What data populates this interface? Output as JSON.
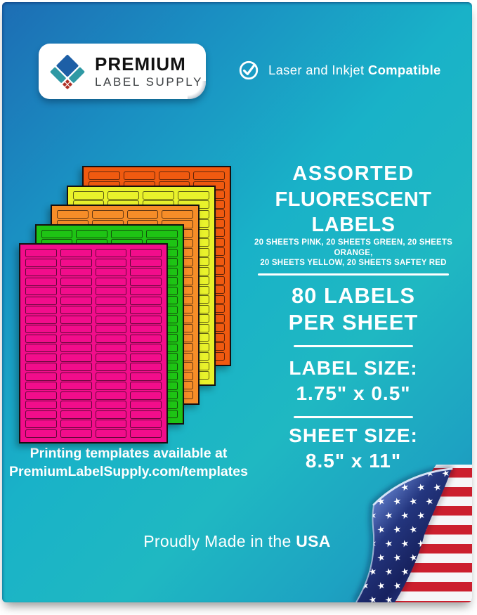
{
  "brand": {
    "name_line1": "PREMIUM",
    "name_line2": "LABEL SUPPLY",
    "logo_colors": {
      "blue": "#1d5fa6",
      "teal": "#2f99a4",
      "red": "#b03228"
    }
  },
  "header": {
    "compatibility_regular": "Laser and Inkjet",
    "compatibility_bold": "Compatible",
    "check_icon": "check-circle-icon"
  },
  "sheets": {
    "columns": 4,
    "rows": 20,
    "colors": [
      {
        "name": "safety-red",
        "hex": "#F05A10"
      },
      {
        "name": "yellow",
        "hex": "#E9F22B"
      },
      {
        "name": "orange",
        "hex": "#F68D28"
      },
      {
        "name": "green",
        "hex": "#1EC414"
      },
      {
        "name": "pink",
        "hex": "#F20D8B"
      }
    ]
  },
  "details": {
    "title_line1": "ASSORTED",
    "title_line2": "FLUORESCENT LABELS",
    "subtitle_line1": "20 SHEETS PINK, 20 SHEETS GREEN, 20 SHEETS ORANGE,",
    "subtitle_line2": "20 SHEETS YELLOW, 20 SHEETS SAFTEY RED",
    "labels_per_sheet_line1": "80 LABELS",
    "labels_per_sheet_line2": "PER SHEET",
    "label_size_heading": "LABEL SIZE:",
    "label_size_value": "1.75\" x 0.5\"",
    "sheet_size_heading": "SHEET SIZE:",
    "sheet_size_value": "8.5\" x 11\""
  },
  "templates_note": {
    "line1": "Printing templates available at",
    "line2": "PremiumLabelSupply.com/templates"
  },
  "footer": {
    "regular": "Proudly Made in the",
    "bold": "USA"
  },
  "flag": {
    "stripe_red": "#CC1F2E",
    "field_blue": "#1B2D78"
  },
  "background": {
    "top_left": "#1D6DB4",
    "middle": "#19B2C8",
    "bottom_right": "#1B86B2"
  }
}
